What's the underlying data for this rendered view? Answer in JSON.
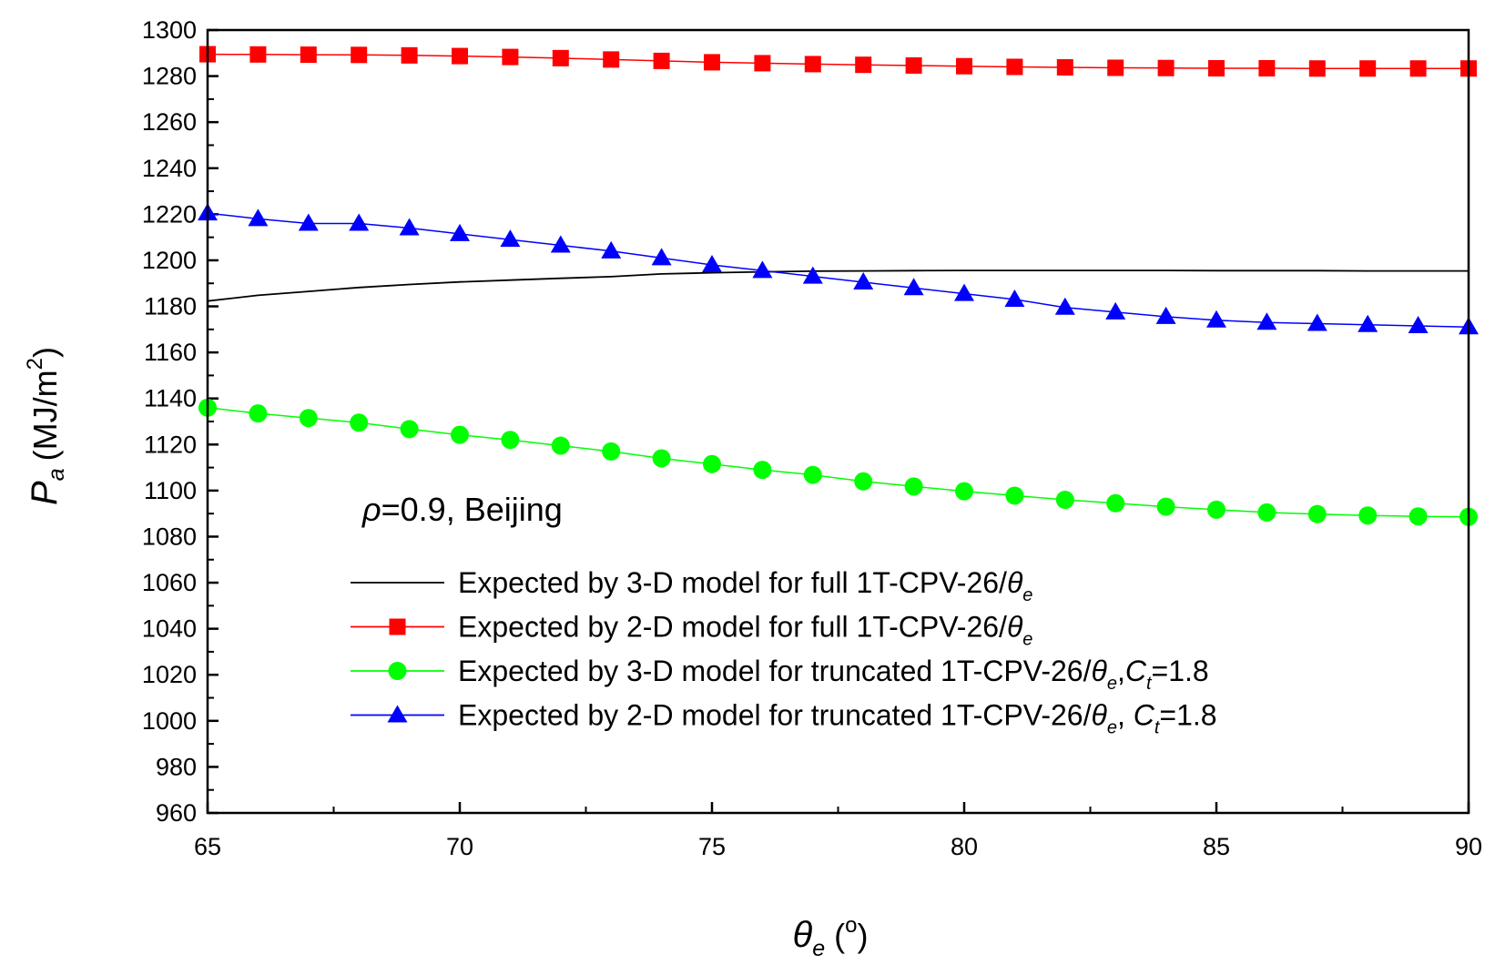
{
  "chart_data": {
    "type": "line",
    "xlabel": {
      "symbol": "θ",
      "sub": "e",
      "unit": "(°)",
      "unit_open": "(",
      "unit_sup": "o",
      "unit_close": ")"
    },
    "ylabel": {
      "symbol": "P",
      "sub": "a",
      "unit_open": "(MJ/m",
      "unit_sup": "2",
      "unit_close": ")"
    },
    "xlim": [
      65,
      90
    ],
    "ylim": [
      960,
      1300
    ],
    "xticks": [
      65,
      70,
      75,
      80,
      85,
      90
    ],
    "yticks": [
      960,
      980,
      1000,
      1020,
      1040,
      1060,
      1080,
      1100,
      1120,
      1140,
      1160,
      1180,
      1200,
      1220,
      1240,
      1260,
      1280,
      1300
    ],
    "annotation": {
      "symbol": "ρ",
      "rest": "=0.9, Beijing"
    },
    "x": [
      65,
      66,
      67,
      68,
      69,
      70,
      71,
      72,
      73,
      74,
      75,
      76,
      77,
      78,
      79,
      80,
      81,
      82,
      83,
      84,
      85,
      86,
      87,
      88,
      89,
      90
    ],
    "series": [
      {
        "name": "Expected by 3-D model for full 1T-CPV-26/θe",
        "legend": {
          "pre": "Expected by 3-D model for full 1T-CPV-26/",
          "var": "θ",
          "sub": "e",
          "mid": "",
          "var2": "",
          "sub2": "",
          "post": ""
        },
        "color": "#000000",
        "marker": "none",
        "values": [
          1182.3,
          1184.8,
          1186.5,
          1188.2,
          1189.5,
          1190.6,
          1191.4,
          1192.2,
          1192.9,
          1194.1,
          1194.6,
          1195.0,
          1195.3,
          1195.4,
          1195.5,
          1195.6,
          1195.6,
          1195.6,
          1195.6,
          1195.6,
          1195.5,
          1195.5,
          1195.5,
          1195.4,
          1195.4,
          1195.4
        ]
      },
      {
        "name": "Expected by 2-D model for full 1T-CPV-26/θe",
        "legend": {
          "pre": "Expected by 2-D model for full 1T-CPV-26/",
          "var": "θ",
          "sub": "e",
          "mid": "",
          "var2": "",
          "sub2": "",
          "post": ""
        },
        "color": "#ff0000",
        "marker": "square",
        "values": [
          1289.5,
          1289.4,
          1289.3,
          1289.2,
          1289.0,
          1288.7,
          1288.3,
          1287.8,
          1287.2,
          1286.6,
          1286.0,
          1285.6,
          1285.2,
          1284.9,
          1284.6,
          1284.3,
          1284.0,
          1283.8,
          1283.6,
          1283.5,
          1283.4,
          1283.4,
          1283.3,
          1283.3,
          1283.3,
          1283.3
        ]
      },
      {
        "name": "Expected by 3-D model for truncated 1T-CPV-26/θe,Ct=1.8",
        "legend": {
          "pre": "Expected by 3-D model for truncated 1T-CPV-26/",
          "var": "θ",
          "sub": "e",
          "mid": ",",
          "var2": "C",
          "sub2": "t",
          "post": "=1.8"
        },
        "color": "#00ff00",
        "marker": "circle",
        "values": [
          1136.0,
          1133.5,
          1131.5,
          1129.5,
          1126.7,
          1124.2,
          1122.0,
          1119.5,
          1117.0,
          1114.0,
          1111.5,
          1109.0,
          1106.8,
          1104.0,
          1101.8,
          1099.7,
          1097.8,
          1096.0,
          1094.5,
          1093.0,
          1091.7,
          1090.5,
          1089.8,
          1089.2,
          1088.8,
          1088.6
        ]
      },
      {
        "name": "Expected by 2-D model for truncated 1T-CPV-26/θe, Ct=1.8",
        "legend": {
          "pre": "Expected by 2-D model for truncated 1T-CPV-26/",
          "var": "θ",
          "sub": "e",
          "mid": ", ",
          "var2": "C",
          "sub2": "t",
          "post": "=1.8"
        },
        "color": "#0000ff",
        "marker": "triangle",
        "values": [
          1220.5,
          1218.0,
          1216.0,
          1216.0,
          1214.0,
          1211.5,
          1209.0,
          1206.5,
          1204.0,
          1201.0,
          1198.0,
          1195.5,
          1193.0,
          1190.5,
          1188.0,
          1185.5,
          1183.0,
          1179.5,
          1177.5,
          1175.5,
          1174.0,
          1173.0,
          1172.5,
          1172.0,
          1171.5,
          1171.0
        ]
      }
    ]
  }
}
